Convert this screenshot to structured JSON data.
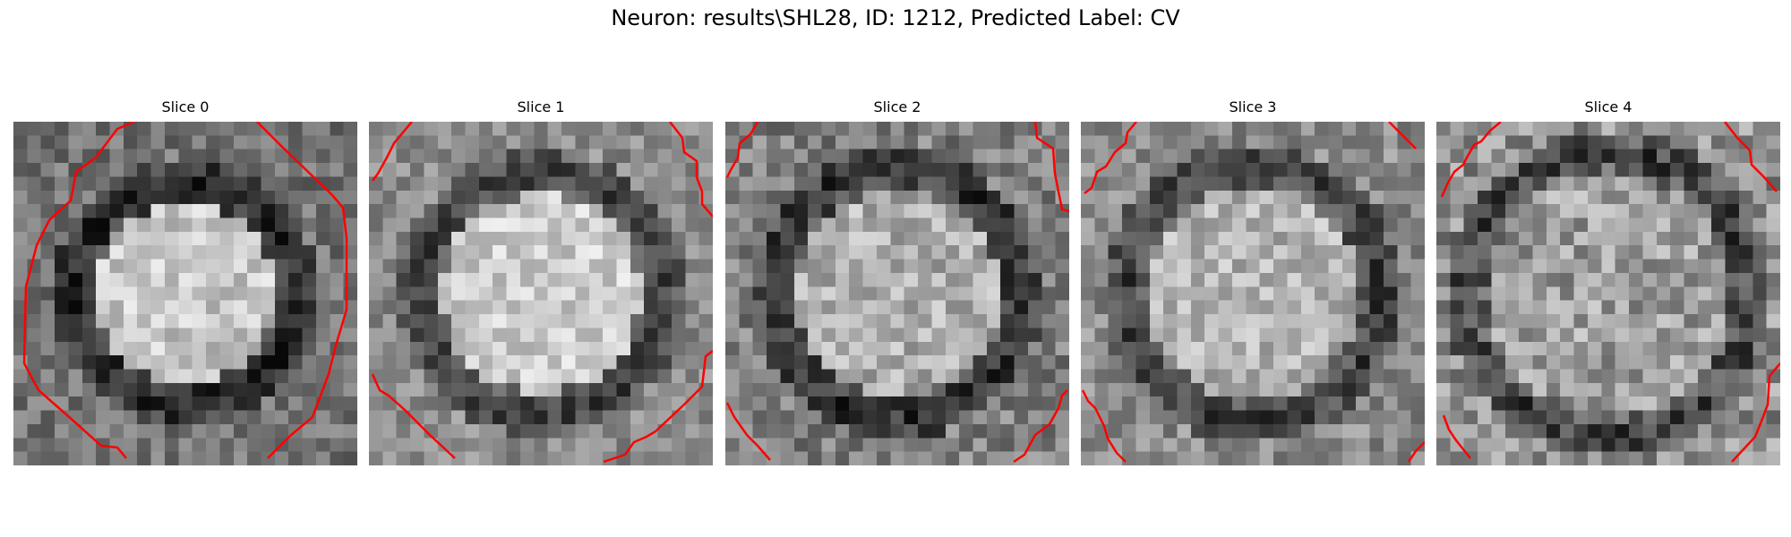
{
  "figure": {
    "title": "Neuron: results\\SHL28, ID: 1212, Predicted Label: CV",
    "contour_color": "#ff0000"
  },
  "slices": [
    {
      "label": "Slice 0"
    },
    {
      "label": "Slice 1"
    },
    {
      "label": "Slice 2"
    },
    {
      "label": "Slice 3"
    },
    {
      "label": "Slice 4"
    }
  ]
}
